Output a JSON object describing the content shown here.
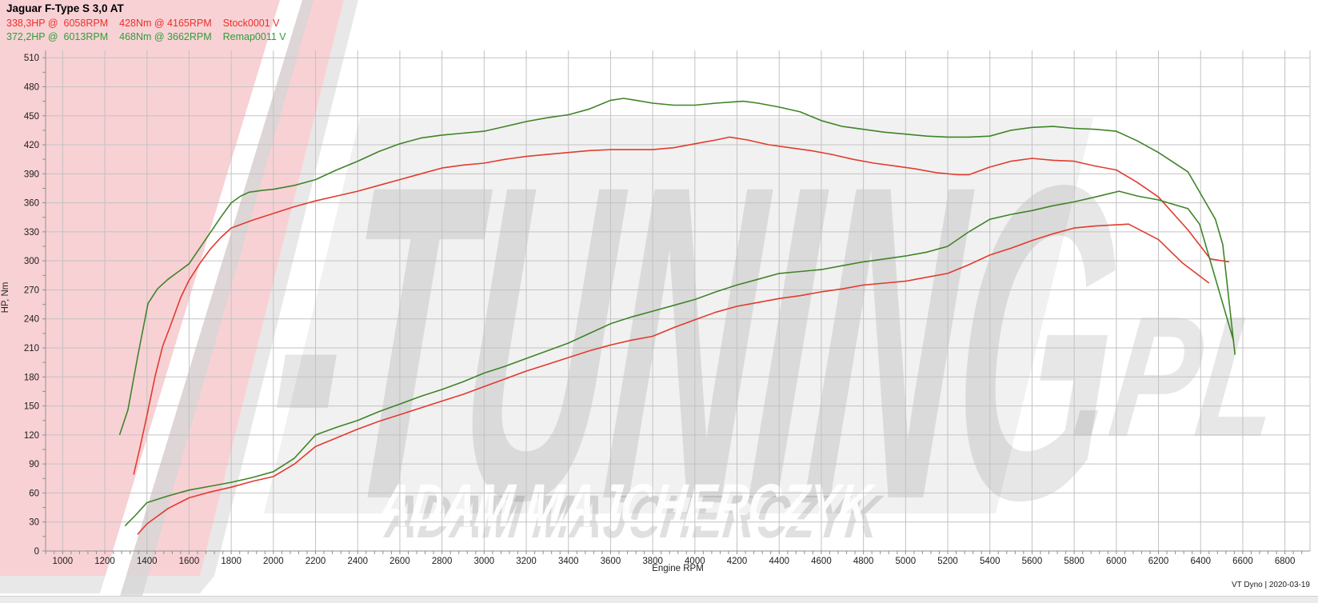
{
  "header": {
    "title": "Jaguar F-Type S 3,0 AT",
    "stock": {
      "color": "#ed2f28",
      "power_summary": "338,3HP @  6058RPM",
      "torque_summary": "428Nm @ 4165RPM",
      "run_label": "Stock0001 V"
    },
    "remap": {
      "color": "#2f9e38",
      "power_summary": "372,2HP @  6013RPM",
      "torque_summary": "468Nm @ 3662RPM",
      "run_label": "Remap0011 V"
    }
  },
  "axes": {
    "x_title": "Engine RPM",
    "y_title": "HP, Nm"
  },
  "footer": {
    "note": "VT Dyno | 2020-03-19"
  },
  "watermark": {
    "letters": "-TUNING",
    "suffix": ".PL",
    "name": "ADAM MAJCHERCZYK",
    "v_fill": "#f8d1d5",
    "shadow_fill": "#d6d6d6"
  },
  "chart_data": {
    "type": "line",
    "title": "Jaguar F-Type S 3,0 AT",
    "xlabel": "Engine RPM",
    "ylabel": "HP, Nm",
    "grid": true,
    "legend_position": "top-left header",
    "axes": {
      "x_range": [
        919,
        6919
      ],
      "y_range": [
        0,
        517.6
      ],
      "x_ticks": [
        1000,
        1200,
        1400,
        1600,
        1800,
        2000,
        2200,
        2400,
        2600,
        2800,
        3000,
        3200,
        3400,
        3600,
        3800,
        4000,
        4200,
        4400,
        4600,
        4800,
        5000,
        5200,
        5400,
        5600,
        5800,
        6000,
        6200,
        6400,
        6600,
        6800
      ],
      "y_ticks": [
        0,
        30,
        60,
        90,
        120,
        150,
        180,
        210,
        240,
        270,
        300,
        330,
        360,
        390,
        420,
        450,
        480,
        510
      ],
      "x_minor_step": 40,
      "y_minor_step": 15
    },
    "series": [
      {
        "name": "Remap torque (Nm)",
        "color": "#3f8428",
        "peak": "468Nm @ 3662RPM",
        "points": [
          [
            1270,
            120
          ],
          [
            1310,
            146
          ],
          [
            1355,
            200
          ],
          [
            1405,
            256
          ],
          [
            1450,
            271
          ],
          [
            1500,
            281
          ],
          [
            1550,
            289
          ],
          [
            1600,
            297
          ],
          [
            1650,
            313
          ],
          [
            1700,
            329
          ],
          [
            1750,
            345
          ],
          [
            1800,
            360
          ],
          [
            1845,
            367
          ],
          [
            1885,
            371
          ],
          [
            1950,
            373
          ],
          [
            2000,
            374
          ],
          [
            2100,
            378
          ],
          [
            2200,
            384
          ],
          [
            2300,
            394
          ],
          [
            2400,
            403
          ],
          [
            2500,
            413
          ],
          [
            2600,
            421
          ],
          [
            2700,
            427
          ],
          [
            2800,
            430
          ],
          [
            2900,
            432
          ],
          [
            3000,
            434
          ],
          [
            3100,
            439
          ],
          [
            3200,
            444
          ],
          [
            3300,
            448
          ],
          [
            3400,
            451
          ],
          [
            3500,
            457
          ],
          [
            3600,
            466
          ],
          [
            3662,
            468
          ],
          [
            3720,
            466
          ],
          [
            3800,
            463
          ],
          [
            3900,
            461
          ],
          [
            4000,
            461
          ],
          [
            4100,
            463
          ],
          [
            4230,
            465
          ],
          [
            4300,
            463
          ],
          [
            4400,
            459
          ],
          [
            4500,
            454
          ],
          [
            4600,
            445
          ],
          [
            4700,
            439
          ],
          [
            4800,
            436
          ],
          [
            4900,
            433
          ],
          [
            5000,
            431
          ],
          [
            5100,
            429
          ],
          [
            5200,
            428
          ],
          [
            5300,
            428
          ],
          [
            5400,
            429
          ],
          [
            5500,
            435
          ],
          [
            5600,
            438
          ],
          [
            5700,
            439
          ],
          [
            5800,
            437
          ],
          [
            5900,
            436
          ],
          [
            6000,
            434
          ],
          [
            6100,
            424
          ],
          [
            6200,
            412
          ],
          [
            6340,
            392
          ],
          [
            6470,
            343
          ],
          [
            6505,
            317
          ],
          [
            6563,
            203
          ]
        ]
      },
      {
        "name": "Stock torque (Nm)",
        "color": "#e23b2e",
        "peak": "428Nm @ 4165RPM",
        "points": [
          [
            1337,
            79
          ],
          [
            1365,
            105
          ],
          [
            1400,
            140
          ],
          [
            1440,
            182
          ],
          [
            1475,
            212
          ],
          [
            1510,
            232
          ],
          [
            1560,
            262
          ],
          [
            1600,
            280
          ],
          [
            1650,
            297
          ],
          [
            1700,
            312
          ],
          [
            1750,
            324
          ],
          [
            1800,
            334
          ],
          [
            1900,
            342
          ],
          [
            2000,
            349
          ],
          [
            2100,
            356
          ],
          [
            2200,
            362
          ],
          [
            2300,
            367
          ],
          [
            2400,
            372
          ],
          [
            2500,
            378
          ],
          [
            2600,
            384
          ],
          [
            2700,
            390
          ],
          [
            2800,
            396
          ],
          [
            2900,
            399
          ],
          [
            3000,
            401
          ],
          [
            3100,
            405
          ],
          [
            3200,
            408
          ],
          [
            3300,
            410
          ],
          [
            3400,
            412
          ],
          [
            3500,
            414
          ],
          [
            3600,
            415
          ],
          [
            3700,
            415
          ],
          [
            3800,
            415
          ],
          [
            3900,
            417
          ],
          [
            4000,
            421
          ],
          [
            4100,
            425
          ],
          [
            4165,
            428
          ],
          [
            4250,
            425
          ],
          [
            4350,
            420
          ],
          [
            4450,
            417
          ],
          [
            4550,
            414
          ],
          [
            4650,
            410
          ],
          [
            4750,
            405
          ],
          [
            4850,
            401
          ],
          [
            4950,
            398
          ],
          [
            5050,
            395
          ],
          [
            5150,
            391
          ],
          [
            5250,
            389
          ],
          [
            5300,
            389
          ],
          [
            5400,
            397
          ],
          [
            5500,
            403
          ],
          [
            5600,
            406
          ],
          [
            5700,
            404
          ],
          [
            5800,
            403
          ],
          [
            5900,
            398
          ],
          [
            6000,
            394
          ],
          [
            6100,
            381
          ],
          [
            6200,
            366
          ],
          [
            6340,
            332
          ],
          [
            6446,
            302
          ],
          [
            6535,
            299
          ]
        ]
      },
      {
        "name": "Remap power (HP)",
        "color": "#3f8428",
        "peak": "372,2HP @ 6013RPM",
        "points": [
          [
            1296,
            26
          ],
          [
            1350,
            38
          ],
          [
            1400,
            50
          ],
          [
            1500,
            57
          ],
          [
            1600,
            63
          ],
          [
            1700,
            67
          ],
          [
            1800,
            71
          ],
          [
            1900,
            76
          ],
          [
            2000,
            82
          ],
          [
            2100,
            96
          ],
          [
            2200,
            120
          ],
          [
            2300,
            128
          ],
          [
            2400,
            135
          ],
          [
            2500,
            144
          ],
          [
            2600,
            152
          ],
          [
            2700,
            160
          ],
          [
            2800,
            167
          ],
          [
            2900,
            175
          ],
          [
            3000,
            184
          ],
          [
            3100,
            191
          ],
          [
            3200,
            199
          ],
          [
            3300,
            207
          ],
          [
            3400,
            215
          ],
          [
            3500,
            225
          ],
          [
            3600,
            235
          ],
          [
            3700,
            242
          ],
          [
            3800,
            248
          ],
          [
            3900,
            254
          ],
          [
            4000,
            260
          ],
          [
            4100,
            268
          ],
          [
            4200,
            275
          ],
          [
            4300,
            281
          ],
          [
            4400,
            287
          ],
          [
            4500,
            289
          ],
          [
            4600,
            291
          ],
          [
            4700,
            295
          ],
          [
            4800,
            299
          ],
          [
            4900,
            302
          ],
          [
            5000,
            305
          ],
          [
            5100,
            309
          ],
          [
            5200,
            315
          ],
          [
            5300,
            330
          ],
          [
            5400,
            343
          ],
          [
            5500,
            348
          ],
          [
            5600,
            352
          ],
          [
            5700,
            357
          ],
          [
            5800,
            361
          ],
          [
            5900,
            366
          ],
          [
            6013,
            372
          ],
          [
            6100,
            367
          ],
          [
            6200,
            363
          ],
          [
            6340,
            354
          ],
          [
            6395,
            338
          ],
          [
            6557,
            217
          ]
        ]
      },
      {
        "name": "Stock power (HP)",
        "color": "#e23b2e",
        "peak": "338,3HP @ 6058RPM",
        "points": [
          [
            1355,
            17
          ],
          [
            1400,
            28
          ],
          [
            1500,
            44
          ],
          [
            1600,
            55
          ],
          [
            1700,
            61
          ],
          [
            1800,
            66
          ],
          [
            1900,
            72
          ],
          [
            2000,
            77
          ],
          [
            2100,
            90
          ],
          [
            2200,
            108
          ],
          [
            2300,
            117
          ],
          [
            2400,
            126
          ],
          [
            2500,
            134
          ],
          [
            2600,
            141
          ],
          [
            2700,
            148
          ],
          [
            2800,
            155
          ],
          [
            2900,
            162
          ],
          [
            3000,
            170
          ],
          [
            3100,
            178
          ],
          [
            3200,
            186
          ],
          [
            3300,
            193
          ],
          [
            3400,
            200
          ],
          [
            3500,
            207
          ],
          [
            3600,
            213
          ],
          [
            3700,
            218
          ],
          [
            3800,
            222
          ],
          [
            3900,
            231
          ],
          [
            4000,
            239
          ],
          [
            4100,
            247
          ],
          [
            4200,
            253
          ],
          [
            4300,
            257
          ],
          [
            4400,
            261
          ],
          [
            4500,
            264
          ],
          [
            4600,
            268
          ],
          [
            4700,
            271
          ],
          [
            4800,
            275
          ],
          [
            4900,
            277
          ],
          [
            5000,
            279
          ],
          [
            5100,
            283
          ],
          [
            5200,
            287
          ],
          [
            5300,
            296
          ],
          [
            5400,
            306
          ],
          [
            5500,
            313
          ],
          [
            5600,
            321
          ],
          [
            5700,
            328
          ],
          [
            5800,
            334
          ],
          [
            5900,
            336
          ],
          [
            6058,
            338
          ],
          [
            6200,
            322
          ],
          [
            6313,
            298
          ],
          [
            6440,
            277
          ]
        ]
      }
    ]
  }
}
